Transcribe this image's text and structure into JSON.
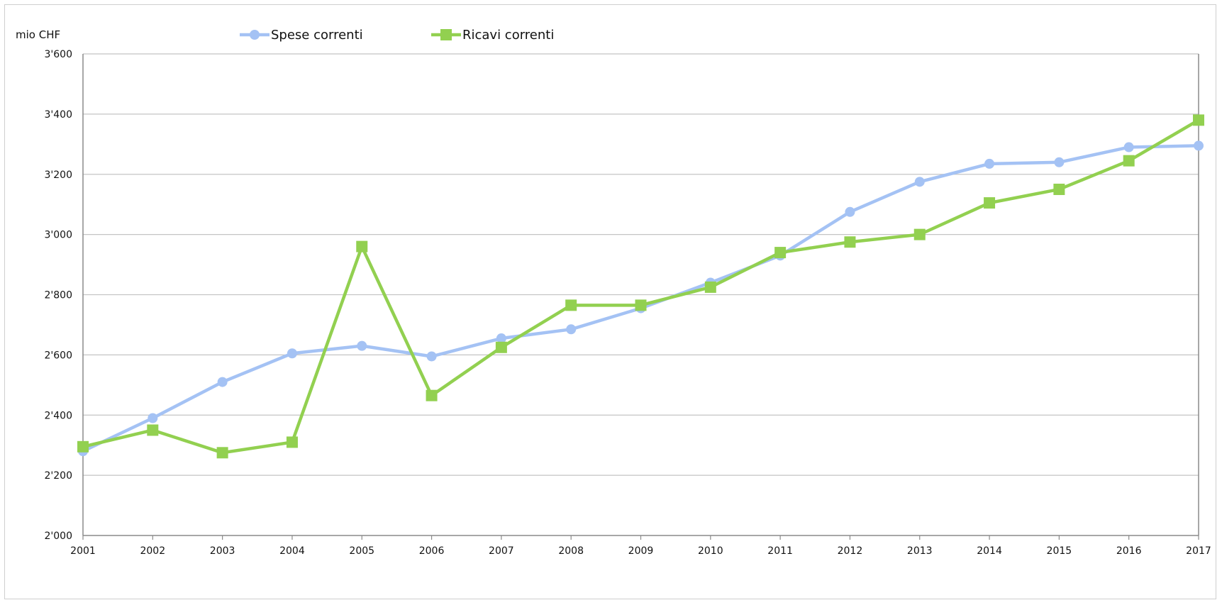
{
  "chart_data": {
    "type": "line",
    "ylabel": "mio CHF",
    "ylim": [
      2000,
      3600
    ],
    "ytick_step": 200,
    "ytick_labels": [
      "2'000",
      "2'200",
      "2'400",
      "2'600",
      "2'800",
      "3'000",
      "3'200",
      "3'400",
      "3'600"
    ],
    "x": [
      "2001",
      "2002",
      "2003",
      "2004",
      "2005",
      "2006",
      "2007",
      "2008",
      "2009",
      "2010",
      "2011",
      "2012",
      "2013",
      "2014",
      "2015",
      "2016",
      "2017"
    ],
    "grid": true,
    "legend_position": "top",
    "series": [
      {
        "name": "Spese correnti",
        "color": "#a4c2f4",
        "marker": "circle",
        "values": [
          2280,
          2390,
          2510,
          2605,
          2630,
          2595,
          2655,
          2685,
          2755,
          2840,
          2930,
          3075,
          3175,
          3235,
          3240,
          3290,
          3295
        ]
      },
      {
        "name": "Ricavi correnti",
        "color": "#92d050",
        "marker": "square",
        "values": [
          2295,
          2350,
          2275,
          2310,
          2960,
          2465,
          2625,
          2765,
          2765,
          2825,
          2940,
          2975,
          3000,
          3105,
          3150,
          3245,
          3380
        ]
      }
    ]
  }
}
